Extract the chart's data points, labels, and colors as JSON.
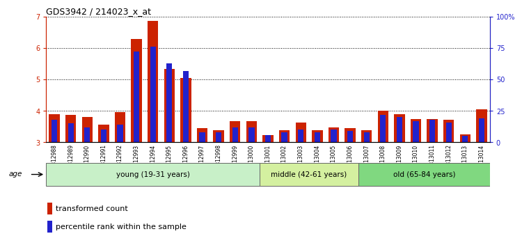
{
  "title": "GDS3942 / 214023_x_at",
  "samples": [
    "GSM812988",
    "GSM812989",
    "GSM812990",
    "GSM812991",
    "GSM812992",
    "GSM812993",
    "GSM812994",
    "GSM812995",
    "GSM812996",
    "GSM812997",
    "GSM812998",
    "GSM812999",
    "GSM813000",
    "GSM813001",
    "GSM813002",
    "GSM813003",
    "GSM813004",
    "GSM813005",
    "GSM813006",
    "GSM813007",
    "GSM813008",
    "GSM813009",
    "GSM813010",
    "GSM813011",
    "GSM813012",
    "GSM813013",
    "GSM813014"
  ],
  "transformed_count": [
    3.9,
    3.87,
    3.8,
    3.57,
    3.97,
    6.28,
    6.87,
    5.33,
    5.05,
    3.45,
    3.38,
    3.67,
    3.68,
    3.23,
    3.38,
    3.62,
    3.38,
    3.47,
    3.45,
    3.38,
    4.0,
    3.9,
    3.75,
    3.75,
    3.72,
    3.25,
    4.05
  ],
  "percentile_rank": [
    18,
    15,
    12,
    10,
    14,
    72,
    76,
    63,
    57,
    8,
    8,
    12,
    12,
    6,
    8,
    10,
    8,
    10,
    9,
    8,
    22,
    20,
    17,
    18,
    16,
    5,
    19
  ],
  "group_boundaries": [
    0,
    13,
    19,
    27
  ],
  "group_labels": [
    "young (19-31 years)",
    "middle (42-61 years)",
    "old (65-84 years)"
  ],
  "group_colors": [
    "#c8f0c8",
    "#d4f0a0",
    "#80d880"
  ],
  "ylim_left": [
    3.0,
    7.0
  ],
  "ylim_right": [
    0,
    100
  ],
  "yticks_left": [
    3,
    4,
    5,
    6,
    7
  ],
  "yticks_right": [
    0,
    25,
    50,
    75,
    100
  ],
  "bar_color_red": "#cc2200",
  "bar_color_blue": "#2222cc",
  "bar_width": 0.65,
  "blue_bar_width": 0.35,
  "legend_items": [
    "transformed count",
    "percentile rank within the sample"
  ],
  "tick_fontsize": 7,
  "label_fontsize": 7.5,
  "title_fontsize": 9
}
